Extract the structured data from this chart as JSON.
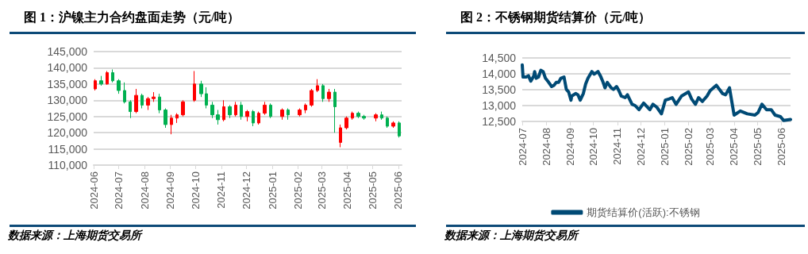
{
  "chart_data": [
    {
      "type": "candlestick",
      "title": "图 1：沪镍主力合约盘面走势（元/吨）",
      "annotations": [
        "数据来源：上海期货交易所"
      ],
      "x": [
        "2024-06-03",
        "2024-06-10",
        "2024-06-17",
        "2024-06-24",
        "2024-07-01",
        "2024-07-08",
        "2024-07-15",
        "2024-07-22",
        "2024-07-29",
        "2024-08-05",
        "2024-08-12",
        "2024-08-19",
        "2024-08-26",
        "2024-09-02",
        "2024-09-09",
        "2024-09-16",
        "2024-09-30",
        "2024-10-08",
        "2024-10-14",
        "2024-10-21",
        "2024-10-28",
        "2024-11-04",
        "2024-11-11",
        "2024-11-18",
        "2024-11-25",
        "2024-12-02",
        "2024-12-09",
        "2024-12-16",
        "2024-12-23",
        "2024-12-30",
        "2025-01-13",
        "2025-01-20",
        "2025-02-03",
        "2025-02-10",
        "2025-02-17",
        "2025-02-24",
        "2025-03-03",
        "2025-03-10",
        "2025-03-17",
        "2025-03-24",
        "2025-03-31",
        "2025-04-07",
        "2025-04-14",
        "2025-04-21",
        "2025-05-05",
        "2025-05-12",
        "2025-05-19",
        "2025-05-26",
        "2025-06-02"
      ],
      "ohlc": [
        [
          133500,
          136500,
          133000,
          136000
        ],
        [
          136000,
          137500,
          134500,
          135000
        ],
        [
          135000,
          139000,
          134800,
          138500
        ],
        [
          138500,
          139500,
          135500,
          136000
        ],
        [
          136000,
          136500,
          132000,
          133000
        ],
        [
          133000,
          135500,
          129000,
          129500
        ],
        [
          129500,
          130000,
          124500,
          126500
        ],
        [
          126500,
          133500,
          126000,
          131500
        ],
        [
          131500,
          132000,
          127500,
          128500
        ],
        [
          128500,
          131000,
          127000,
          130500
        ],
        [
          130500,
          132500,
          129500,
          131000
        ],
        [
          131000,
          132000,
          126000,
          127000
        ],
        [
          127000,
          127500,
          121500,
          122500
        ],
        [
          122500,
          125500,
          119500,
          124500
        ],
        [
          124500,
          126000,
          123000,
          125500
        ],
        [
          125500,
          130000,
          125000,
          129500
        ],
        [
          130000,
          139000,
          129500,
          135000
        ],
        [
          135000,
          136000,
          131000,
          132000
        ],
        [
          132000,
          134000,
          127500,
          128500
        ],
        [
          128500,
          129500,
          124500,
          125500
        ],
        [
          125500,
          127000,
          122500,
          124000
        ],
        [
          124000,
          130000,
          123500,
          128000
        ],
        [
          128000,
          128500,
          124500,
          125500
        ],
        [
          125500,
          129500,
          125000,
          128500
        ],
        [
          128500,
          129500,
          124000,
          125000
        ],
        [
          125000,
          127000,
          123500,
          126500
        ],
        [
          126500,
          127000,
          122000,
          123000
        ],
        [
          123000,
          126500,
          122500,
          126000
        ],
        [
          126000,
          129500,
          125500,
          128500
        ],
        [
          128500,
          129000,
          124500,
          125000
        ],
        [
          125000,
          127500,
          124000,
          127000
        ],
        [
          127000,
          127500,
          124000,
          125500
        ],
        [
          125500,
          127500,
          125000,
          127000
        ],
        [
          127000,
          129000,
          126000,
          128500
        ],
        [
          128500,
          133500,
          128000,
          133000
        ],
        [
          133000,
          136500,
          132500,
          134500
        ],
        [
          134500,
          135000,
          129500,
          130500
        ],
        [
          130500,
          133500,
          129500,
          132500
        ],
        [
          132500,
          133500,
          120000,
          128000
        ],
        [
          117000,
          122500,
          115500,
          121500
        ],
        [
          121500,
          125000,
          121000,
          124500
        ],
        [
          124500,
          126500,
          124000,
          126000
        ],
        [
          126000,
          126500,
          124500,
          125000
        ],
        [
          125000,
          125500,
          124000,
          124500
        ],
        [
          124500,
          126000,
          123500,
          125500
        ],
        [
          125500,
          126500,
          124000,
          124500
        ],
        [
          124500,
          125000,
          121500,
          122000
        ],
        [
          122000,
          123500,
          121500,
          123000
        ],
        [
          123000,
          123500,
          118500,
          119000
        ]
      ],
      "colors": [
        "#ff0000",
        "#00b050",
        "#ff0000",
        "#00b050",
        "#00b050",
        "#00b050",
        "#00b050",
        "#ff0000",
        "#00b050",
        "#ff0000",
        "#ff0000",
        "#00b050",
        "#00b050",
        "#ff0000",
        "#ff0000",
        "#ff0000",
        "#ff0000",
        "#00b050",
        "#00b050",
        "#00b050",
        "#00b050",
        "#ff0000",
        "#00b050",
        "#ff0000",
        "#00b050",
        "#ff0000",
        "#00b050",
        "#ff0000",
        "#ff0000",
        "#00b050",
        "#ff0000",
        "#00b050",
        "#ff0000",
        "#ff0000",
        "#ff0000",
        "#ff0000",
        "#00b050",
        "#ff0000",
        "#00b050",
        "#ff0000",
        "#ff0000",
        "#ff0000",
        "#00b050",
        "#00b050",
        "#ff0000",
        "#00b050",
        "#00b050",
        "#ff0000",
        "#00b050"
      ],
      "xlim": [
        "2024-06-01",
        "2025-06-05"
      ],
      "xticks": [
        "2024-06",
        "2024-07",
        "2024-08",
        "2024-09",
        "2024-10",
        "2024-11",
        "2024-12",
        "2025-01",
        "2025-02",
        "2025-03",
        "2025-04",
        "2025-05",
        "2025-06"
      ],
      "ylim": [
        110000,
        145000
      ],
      "yticks": [
        {
          "value": 110000,
          "label": "110,000"
        },
        {
          "value": 115000,
          "label": "115,000"
        },
        {
          "value": 120000,
          "label": "120,000"
        },
        {
          "value": 125000,
          "label": "125,000"
        },
        {
          "value": 130000,
          "label": "130,000"
        },
        {
          "value": 135000,
          "label": "135,000"
        },
        {
          "value": 140000,
          "label": "140,000"
        },
        {
          "value": 145000,
          "label": "145,000"
        }
      ],
      "grid": "y",
      "legend": false
    },
    {
      "type": "line",
      "title": "图 2：不锈钢期货结算价（元/吨）",
      "annotations": [
        "数据来源：上海期货交易所"
      ],
      "x": [
        "2024-07-01",
        "2024-07-02",
        "2024-07-06",
        "2024-07-09",
        "2024-07-12",
        "2024-07-16",
        "2024-07-17",
        "2024-07-19",
        "2024-07-22",
        "2024-07-25",
        "2024-07-28",
        "2024-07-31",
        "2024-08-03",
        "2024-08-08",
        "2024-08-11",
        "2024-08-14",
        "2024-08-17",
        "2024-08-20",
        "2024-08-24",
        "2024-08-27",
        "2024-08-30",
        "2024-09-02",
        "2024-09-03",
        "2024-09-08",
        "2024-09-11",
        "2024-09-14",
        "2024-09-18",
        "2024-09-21",
        "2024-09-24",
        "2024-09-29",
        "2024-10-02",
        "2024-10-07",
        "2024-10-10",
        "2024-10-13",
        "2024-10-16",
        "2024-10-19",
        "2024-10-24",
        "2024-10-27",
        "2024-10-31",
        "2024-11-03",
        "2024-11-06",
        "2024-11-11",
        "2024-11-14",
        "2024-11-20",
        "2024-11-24",
        "2024-11-29",
        "2024-12-05",
        "2024-12-13",
        "2024-12-17",
        "2024-12-22",
        "2024-12-28",
        "2025-01-02",
        "2025-01-07",
        "2025-01-11",
        "2025-01-16",
        "2025-01-23",
        "2025-02-01",
        "2025-02-05",
        "2025-02-10",
        "2025-02-14",
        "2025-02-19",
        "2025-02-25",
        "2025-03-01",
        "2025-03-09",
        "2025-03-17",
        "2025-03-21",
        "2025-03-26",
        "2025-04-01",
        "2025-04-09",
        "2025-04-18",
        "2025-04-28",
        "2025-05-02",
        "2025-05-07",
        "2025-05-13",
        "2025-05-19",
        "2025-05-24",
        "2025-05-31",
        "2025-06-04",
        "2025-06-13"
      ],
      "series": [
        {
          "name": "期货结算价(活跃):不锈钢",
          "color": "#004a75",
          "values": [
            14280,
            13900,
            13900,
            13940,
            13770,
            13940,
            14070,
            13860,
            13900,
            14110,
            14070,
            13860,
            13770,
            13600,
            13640,
            13730,
            13730,
            13860,
            13900,
            13510,
            13430,
            13170,
            13300,
            13380,
            13340,
            13170,
            13380,
            13680,
            13860,
            14070,
            13990,
            14070,
            13940,
            13770,
            13560,
            13730,
            13560,
            13510,
            13600,
            13470,
            13300,
            13250,
            13340,
            13040,
            13000,
            12870,
            13080,
            12870,
            13040,
            12950,
            12740,
            13170,
            13210,
            13250,
            13040,
            13300,
            13430,
            13210,
            13040,
            13250,
            13130,
            13300,
            13470,
            13640,
            13380,
            13340,
            13560,
            12700,
            12830,
            12740,
            12700,
            12780,
            13040,
            12870,
            12870,
            12700,
            12650,
            12530,
            12560
          ]
        }
      ],
      "xlim": [
        "2024-07-01",
        "2025-06-13"
      ],
      "xticks": [
        "2024-07",
        "2024-08",
        "2024-09",
        "2024-10",
        "2024-11",
        "2024-12",
        "2025-01",
        "2025-02",
        "2025-03",
        "2025-04",
        "2025-05",
        "2025-06"
      ],
      "ylim": [
        12500,
        14500
      ],
      "yticks": [
        {
          "value": 12500,
          "label": "12,500"
        },
        {
          "value": 13000,
          "label": "13,000"
        },
        {
          "value": 13500,
          "label": "13,500"
        },
        {
          "value": 14000,
          "label": "14,000"
        },
        {
          "value": 14500,
          "label": "14,500"
        }
      ],
      "grid": "y",
      "legend": "bottom",
      "marker": "none",
      "line_style": "solid"
    }
  ]
}
